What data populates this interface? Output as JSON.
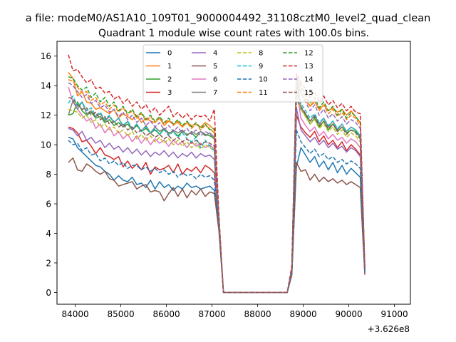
{
  "chart_data": {
    "type": "line",
    "suptitle": "a file: modeM0/AS1A10_109T01_9000004492_31108cztM0_level2_quad_clean",
    "title": "Quadrant 1 module wise count rates with 100.0s bins.",
    "xlabel": "",
    "ylabel": "",
    "x_offset_text": "+3.626e8",
    "xlim": [
      83600,
      91350
    ],
    "ylim": [
      -0.8,
      17
    ],
    "xticks": [
      "84000",
      "85000",
      "86000",
      "87000",
      "88000",
      "89000",
      "90000",
      "91000"
    ],
    "xtick_values": [
      84000,
      85000,
      86000,
      87000,
      88000,
      89000,
      90000,
      91000
    ],
    "yticks": [
      "0",
      "2",
      "4",
      "6",
      "8",
      "10",
      "12",
      "14",
      "16"
    ],
    "ytick_values": [
      0,
      2,
      4,
      6,
      8,
      10,
      12,
      14,
      16
    ],
    "grid": false,
    "legend_location": "top-center",
    "legend_columns": 4,
    "x_start": 83850,
    "bin_seconds": 100,
    "series": [
      {
        "name": "0",
        "color": "#1f77b4",
        "dash": "solid",
        "values": [
          10.5,
          10.4,
          9.8,
          9.5,
          9.2,
          8.9,
          8.6,
          8.5,
          8.2,
          8.0,
          7.6,
          7.9,
          7.6,
          7.5,
          7.8,
          7.3,
          7.4,
          7.1,
          7.6,
          7.0,
          7.5,
          7.1,
          7.3,
          6.9,
          7.2,
          7.0,
          7.4,
          7.1,
          7.2,
          7.0,
          7.1,
          7.2,
          6.9,
          4.5,
          0,
          0,
          0,
          0,
          0,
          0,
          0,
          0,
          0,
          0,
          0,
          0,
          0,
          0,
          0,
          1.2,
          8.5,
          9.8,
          9.3,
          8.8,
          9.2,
          8.5,
          8.9,
          8.3,
          8.8,
          8.1,
          8.6,
          8.0,
          8.4,
          8.1,
          7.8,
          1.3
        ]
      },
      {
        "name": "1",
        "color": "#ff7f0e",
        "dash": "solid",
        "values": [
          14.9,
          14.5,
          13.3,
          13.6,
          12.9,
          12.8,
          12.4,
          12.5,
          12.3,
          12.1,
          12.4,
          11.8,
          12.1,
          11.9,
          11.7,
          12.0,
          11.5,
          11.8,
          11.6,
          11.5,
          11.8,
          11.3,
          11.6,
          11.4,
          11.5,
          11.2,
          11.5,
          11.3,
          11.4,
          11.2,
          11.5,
          11.3,
          11.0,
          5.0,
          0,
          0,
          0,
          0,
          0,
          0,
          0,
          0,
          0,
          0,
          0,
          0,
          0,
          0,
          0,
          1.6,
          14.5,
          13.5,
          13.0,
          12.6,
          12.9,
          12.4,
          12.7,
          12.3,
          12.5,
          12.2,
          12.4,
          12.0,
          12.3,
          11.9,
          11.5,
          1.8
        ]
      },
      {
        "name": "2",
        "color": "#2ca02c",
        "dash": "solid",
        "values": [
          12.0,
          12.1,
          12.9,
          12.3,
          12.0,
          12.2,
          11.8,
          11.9,
          11.5,
          11.7,
          11.3,
          11.5,
          11.2,
          11.4,
          11.0,
          11.3,
          10.9,
          11.1,
          10.8,
          11.0,
          10.7,
          11.1,
          10.8,
          10.9,
          10.6,
          10.9,
          10.7,
          10.8,
          10.5,
          10.9,
          10.7,
          10.6,
          10.4,
          4.8,
          0,
          0,
          0,
          0,
          0,
          0,
          0,
          0,
          0,
          0,
          0,
          0,
          0,
          0,
          0,
          1.5,
          14.8,
          12.4,
          12.0,
          11.4,
          11.8,
          11.2,
          11.6,
          11.0,
          11.4,
          10.9,
          11.2,
          10.8,
          11.0,
          10.9,
          10.5,
          1.5
        ]
      },
      {
        "name": "3",
        "color": "#d62728",
        "dash": "solid",
        "values": [
          11.2,
          11.1,
          10.8,
          10.2,
          10.3,
          9.9,
          9.4,
          9.8,
          9.3,
          9.2,
          9.0,
          9.2,
          8.5,
          8.9,
          8.4,
          8.7,
          8.3,
          8.8,
          8.0,
          8.5,
          8.3,
          8.4,
          8.6,
          8.1,
          8.7,
          8.0,
          8.4,
          8.2,
          8.5,
          8.1,
          8.6,
          8.4,
          8.1,
          4.6,
          0,
          0,
          0,
          0,
          0,
          0,
          0,
          0,
          0,
          0,
          0,
          0,
          0,
          0,
          0,
          1.4,
          12.0,
          11.2,
          10.8,
          10.5,
          10.9,
          10.2,
          10.6,
          10.0,
          10.3,
          9.8,
          10.2,
          9.6,
          10.0,
          9.7,
          9.3,
          1.4
        ]
      },
      {
        "name": "4",
        "color": "#9467bd",
        "dash": "solid",
        "values": [
          11.1,
          11.0,
          10.6,
          10.9,
          10.3,
          10.5,
          10.1,
          10.3,
          9.8,
          10.1,
          9.7,
          9.9,
          9.5,
          9.8,
          9.4,
          9.7,
          9.3,
          9.6,
          9.2,
          9.5,
          9.3,
          9.6,
          9.2,
          9.5,
          9.1,
          9.4,
          9.2,
          9.5,
          9.1,
          9.4,
          9.2,
          9.3,
          9.0,
          4.6,
          0,
          0,
          0,
          0,
          0,
          0,
          0,
          0,
          0,
          0,
          0,
          0,
          0,
          0,
          0,
          1.4,
          12.5,
          11.0,
          10.6,
          10.2,
          10.5,
          10.0,
          10.3,
          9.8,
          10.1,
          9.7,
          9.9,
          9.5,
          9.8,
          9.6,
          9.2,
          1.4
        ]
      },
      {
        "name": "5",
        "color": "#8c564b",
        "dash": "solid",
        "values": [
          8.8,
          9.1,
          8.3,
          8.2,
          8.7,
          8.5,
          8.2,
          8.0,
          8.2,
          7.7,
          7.6,
          7.2,
          7.3,
          7.4,
          7.5,
          7.0,
          7.2,
          7.3,
          6.8,
          6.9,
          6.8,
          6.2,
          6.7,
          7.1,
          6.5,
          7.0,
          6.4,
          6.9,
          6.6,
          7.0,
          6.5,
          6.8,
          6.7,
          4.2,
          0,
          0,
          0,
          0,
          0,
          0,
          0,
          0,
          0,
          0,
          0,
          0,
          0,
          0,
          0,
          1.2,
          8.8,
          8.2,
          8.3,
          7.6,
          8.0,
          7.5,
          7.8,
          7.5,
          7.7,
          7.4,
          7.6,
          7.3,
          7.5,
          7.3,
          7.1,
          1.2
        ]
      },
      {
        "name": "6",
        "color": "#e377c2",
        "dash": "solid",
        "values": [
          13.9,
          12.9,
          12.4,
          12.0,
          11.6,
          11.8,
          11.1,
          11.4,
          10.8,
          11.2,
          10.6,
          10.9,
          10.4,
          10.7,
          10.2,
          10.6,
          10.1,
          10.5,
          10.0,
          10.4,
          10.1,
          10.3,
          9.9,
          10.3,
          10.0,
          10.2,
          9.8,
          10.2,
          9.9,
          10.1,
          9.8,
          10.0,
          9.7,
          4.9,
          0,
          0,
          0,
          0,
          0,
          0,
          0,
          0,
          0,
          0,
          0,
          0,
          0,
          0,
          0,
          1.5,
          13.8,
          11.8,
          11.3,
          10.9,
          11.2,
          10.6,
          10.9,
          10.4,
          10.7,
          10.3,
          10.5,
          10.1,
          10.4,
          10.2,
          9.8,
          1.5
        ]
      },
      {
        "name": "7",
        "color": "#7f7f7f",
        "dash": "solid",
        "values": [
          12.0,
          13.0,
          12.4,
          12.9,
          12.1,
          12.3,
          11.9,
          12.1,
          11.6,
          11.9,
          11.5,
          11.8,
          11.2,
          11.6,
          11.0,
          11.4,
          10.9,
          11.3,
          10.8,
          11.2,
          10.9,
          11.1,
          10.7,
          11.0,
          10.8,
          11.0,
          10.6,
          10.9,
          10.7,
          10.9,
          10.6,
          10.8,
          10.5,
          5.0,
          0,
          0,
          0,
          0,
          0,
          0,
          0,
          0,
          0,
          0,
          0,
          0,
          0,
          0,
          0,
          1.6,
          14.2,
          12.5,
          12.1,
          11.6,
          12.0,
          11.4,
          11.8,
          11.2,
          11.6,
          11.0,
          11.4,
          10.9,
          11.2,
          11.0,
          10.6,
          1.6
        ]
      },
      {
        "name": "8",
        "color": "#bcbd22",
        "dash": "dashed",
        "values": [
          12.4,
          12.3,
          12.2,
          11.8,
          12.0,
          11.5,
          11.7,
          11.2,
          11.4,
          11.0,
          11.2,
          10.8,
          11.0,
          10.6,
          10.9,
          10.4,
          10.7,
          10.3,
          10.6,
          10.2,
          10.5,
          10.1,
          10.4,
          10.0,
          10.3,
          9.9,
          10.2,
          9.8,
          10.1,
          9.7,
          10.0,
          9.8,
          9.6,
          4.8,
          0,
          0,
          0,
          0,
          0,
          0,
          0,
          0,
          0,
          0,
          0,
          0,
          0,
          0,
          0,
          1.5,
          13.5,
          12.4,
          11.9,
          11.4,
          11.7,
          11.1,
          11.4,
          10.9,
          11.2,
          10.7,
          11.0,
          10.5,
          10.8,
          10.6,
          10.2,
          1.5
        ]
      },
      {
        "name": "9",
        "color": "#17becf",
        "dash": "dashed",
        "values": [
          12.8,
          13.3,
          12.6,
          12.9,
          12.3,
          12.5,
          12.0,
          12.2,
          11.7,
          12.0,
          11.5,
          11.8,
          11.3,
          11.6,
          11.1,
          11.4,
          10.9,
          11.2,
          10.8,
          11.1,
          10.7,
          11.0,
          10.6,
          10.9,
          10.5,
          10.8,
          10.4,
          10.2,
          10.5,
          9.8,
          10.3,
          9.9,
          9.6,
          4.9,
          0,
          0,
          0,
          0,
          0,
          0,
          0,
          0,
          0,
          0,
          0,
          0,
          0,
          0,
          0,
          1.6,
          13.9,
          12.8,
          12.3,
          11.8,
          12.1,
          11.5,
          11.8,
          11.3,
          11.6,
          11.1,
          11.4,
          10.9,
          11.2,
          11.0,
          10.6,
          1.6
        ]
      },
      {
        "name": "10",
        "color": "#1f77b4",
        "dash": "dashed",
        "values": [
          10.3,
          10.0,
          10.1,
          9.6,
          9.8,
          9.3,
          9.4,
          8.9,
          9.1,
          8.7,
          8.9,
          8.6,
          8.8,
          8.4,
          8.6,
          8.6,
          8.3,
          8.5,
          8.2,
          8.4,
          8.1,
          8.3,
          8.0,
          8.2,
          7.8,
          8.1,
          7.9,
          8.0,
          7.7,
          8.0,
          7.8,
          7.9,
          7.6,
          4.4,
          0,
          0,
          0,
          0,
          0,
          0,
          0,
          0,
          0,
          0,
          0,
          0,
          0,
          0,
          0,
          1.3,
          11.0,
          10.2,
          9.8,
          9.4,
          9.7,
          9.2,
          9.4,
          9.0,
          9.2,
          8.8,
          9.0,
          8.7,
          8.9,
          8.7,
          8.4,
          1.3
        ]
      },
      {
        "name": "11",
        "color": "#ff7f0e",
        "dash": "dashed",
        "values": [
          14.4,
          14.3,
          13.9,
          13.5,
          13.6,
          13.0,
          13.2,
          12.7,
          12.9,
          12.4,
          12.7,
          12.2,
          12.5,
          12.0,
          12.3,
          11.8,
          12.1,
          11.6,
          11.9,
          11.5,
          11.8,
          11.4,
          11.7,
          11.3,
          11.6,
          11.2,
          11.5,
          11.1,
          11.4,
          11.0,
          11.3,
          11.1,
          10.8,
          5.0,
          0,
          0,
          0,
          0,
          0,
          0,
          0,
          0,
          0,
          0,
          0,
          0,
          0,
          0,
          0,
          1.7,
          14.6,
          13.8,
          13.2,
          12.6,
          13.0,
          12.3,
          12.7,
          12.1,
          12.4,
          11.9,
          12.2,
          11.7,
          12.0,
          11.8,
          11.3,
          1.7
        ]
      },
      {
        "name": "12",
        "color": "#2ca02c",
        "dash": "dashed",
        "values": [
          14.6,
          14.5,
          14.0,
          13.7,
          13.9,
          13.2,
          13.5,
          12.9,
          13.2,
          12.6,
          12.9,
          12.3,
          12.6,
          12.1,
          12.4,
          11.9,
          12.2,
          11.7,
          12.0,
          11.6,
          11.9,
          11.5,
          11.8,
          11.4,
          11.7,
          11.3,
          11.6,
          11.2,
          11.5,
          11.1,
          11.4,
          11.0,
          11.1,
          5.1,
          0,
          0,
          0,
          0,
          0,
          0,
          0,
          0,
          0,
          0,
          0,
          0,
          0,
          0,
          0,
          1.7,
          14.7,
          14.0,
          13.4,
          12.8,
          13.2,
          12.5,
          12.9,
          12.3,
          12.6,
          12.0,
          12.4,
          11.8,
          12.2,
          11.9,
          11.5,
          1.7
        ]
      },
      {
        "name": "13",
        "color": "#d62728",
        "dash": "dashed",
        "values": [
          16.1,
          15.0,
          15.1,
          14.6,
          14.2,
          14.4,
          13.8,
          13.9,
          13.5,
          13.6,
          13.1,
          13.3,
          12.8,
          13.1,
          12.6,
          12.9,
          12.4,
          12.7,
          12.2,
          12.5,
          12.0,
          12.3,
          12.6,
          11.9,
          12.2,
          11.8,
          12.1,
          11.7,
          12.0,
          11.9,
          12.0,
          11.6,
          12.4,
          5.3,
          0,
          0,
          0,
          0,
          0,
          0,
          0,
          0,
          0,
          0,
          0,
          0,
          0,
          0,
          0,
          1.8,
          14.8,
          14.2,
          13.8,
          13.2,
          13.6,
          12.9,
          13.3,
          12.7,
          13.0,
          12.5,
          12.8,
          12.3,
          12.6,
          12.2,
          12.1,
          1.8
        ]
      },
      {
        "name": "14",
        "color": "#9467bd",
        "dash": "dashed",
        "values": [
          14.2,
          14.0,
          13.6,
          13.2,
          13.4,
          12.8,
          13.0,
          12.5,
          12.7,
          12.2,
          12.4,
          11.9,
          12.2,
          11.7,
          12.0,
          11.5,
          11.8,
          11.3,
          11.6,
          11.2,
          11.5,
          11.0,
          11.3,
          10.9,
          11.2,
          10.8,
          11.1,
          10.7,
          11.0,
          10.6,
          10.9,
          10.7,
          10.5,
          4.9,
          0,
          0,
          0,
          0,
          0,
          0,
          0,
          0,
          0,
          0,
          0,
          0,
          0,
          0,
          0,
          1.6,
          14.3,
          13.5,
          12.9,
          12.3,
          12.7,
          12.0,
          12.4,
          11.8,
          12.1,
          11.6,
          11.9,
          11.4,
          11.7,
          11.5,
          11.1,
          1.6
        ]
      },
      {
        "name": "15",
        "color": "#8c564b",
        "dash": "dashed",
        "values": [
          13.2,
          13.1,
          12.7,
          12.4,
          12.5,
          12.0,
          12.2,
          11.7,
          11.9,
          11.4,
          11.6,
          11.2,
          11.4,
          11.0,
          11.2,
          10.8,
          11.0,
          10.6,
          10.8,
          10.5,
          10.7,
          10.4,
          10.6,
          10.3,
          10.5,
          10.2,
          10.4,
          10.1,
          10.3,
          10.0,
          10.2,
          10.1,
          9.9,
          4.7,
          0,
          0,
          0,
          0,
          0,
          0,
          0,
          0,
          0,
          0,
          0,
          0,
          0,
          0,
          0,
          1.5,
          13.0,
          12.6,
          12.1,
          11.6,
          11.9,
          11.3,
          11.6,
          11.1,
          11.4,
          10.9,
          11.2,
          10.7,
          11.0,
          10.8,
          10.4,
          1.5
        ]
      }
    ]
  }
}
